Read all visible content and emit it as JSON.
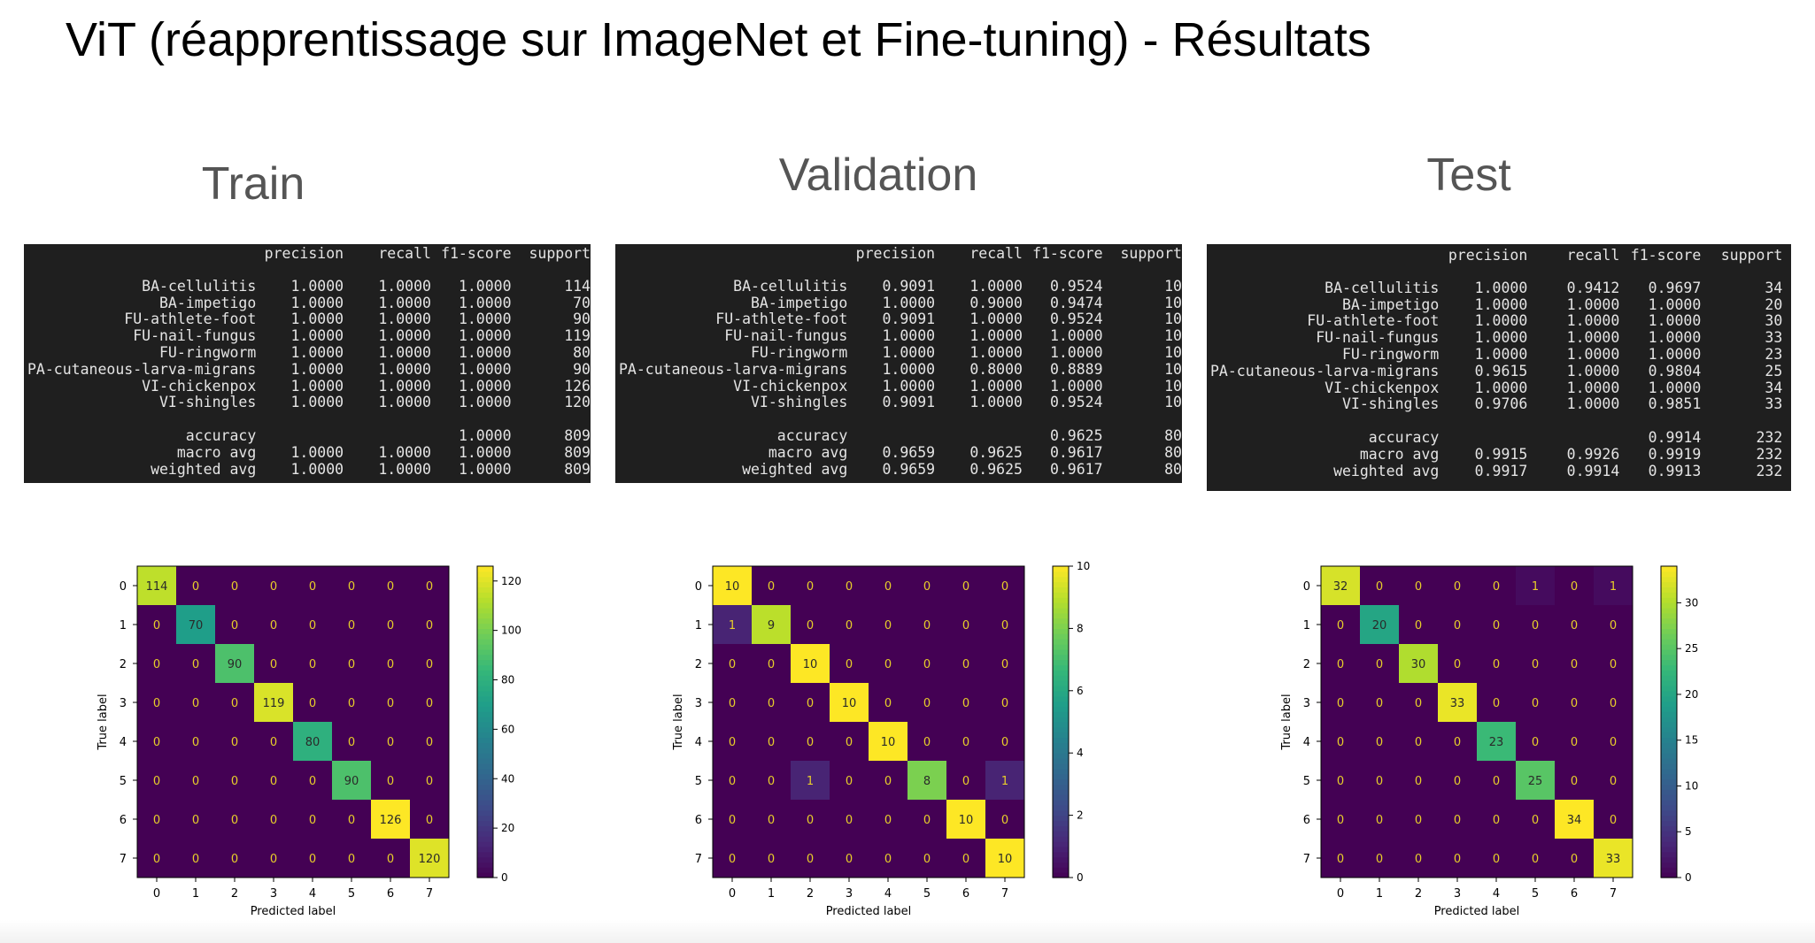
{
  "title": "ViT (réapprentissage sur ImageNet et Fine-tuning) - Résultats",
  "report_header": [
    "precision",
    "recall",
    "f1-score",
    "support"
  ],
  "colormap": "viridis",
  "panels": [
    {
      "name": "Train",
      "report": {
        "rows": [
          [
            "BA-cellulitis",
            "1.0000",
            "1.0000",
            "1.0000",
            "114"
          ],
          [
            "BA-impetigo",
            "1.0000",
            "1.0000",
            "1.0000",
            "70"
          ],
          [
            "FU-athlete-foot",
            "1.0000",
            "1.0000",
            "1.0000",
            "90"
          ],
          [
            "FU-nail-fungus",
            "1.0000",
            "1.0000",
            "1.0000",
            "119"
          ],
          [
            "FU-ringworm",
            "1.0000",
            "1.0000",
            "1.0000",
            "80"
          ],
          [
            "PA-cutaneous-larva-migrans",
            "1.0000",
            "1.0000",
            "1.0000",
            "90"
          ],
          [
            "VI-chickenpox",
            "1.0000",
            "1.0000",
            "1.0000",
            "126"
          ],
          [
            "VI-shingles",
            "1.0000",
            "1.0000",
            "1.0000",
            "120"
          ]
        ],
        "summary": [
          [
            "accuracy",
            "",
            "",
            "1.0000",
            "809"
          ],
          [
            "macro avg",
            "1.0000",
            "1.0000",
            "1.0000",
            "809"
          ],
          [
            "weighted avg",
            "1.0000",
            "1.0000",
            "1.0000",
            "809"
          ]
        ]
      }
    },
    {
      "name": "Validation",
      "report": {
        "rows": [
          [
            "BA-cellulitis",
            "0.9091",
            "1.0000",
            "0.9524",
            "10"
          ],
          [
            "BA-impetigo",
            "1.0000",
            "0.9000",
            "0.9474",
            "10"
          ],
          [
            "FU-athlete-foot",
            "0.9091",
            "1.0000",
            "0.9524",
            "10"
          ],
          [
            "FU-nail-fungus",
            "1.0000",
            "1.0000",
            "1.0000",
            "10"
          ],
          [
            "FU-ringworm",
            "1.0000",
            "1.0000",
            "1.0000",
            "10"
          ],
          [
            "PA-cutaneous-larva-migrans",
            "1.0000",
            "0.8000",
            "0.8889",
            "10"
          ],
          [
            "VI-chickenpox",
            "1.0000",
            "1.0000",
            "1.0000",
            "10"
          ],
          [
            "VI-shingles",
            "0.9091",
            "1.0000",
            "0.9524",
            "10"
          ]
        ],
        "summary": [
          [
            "accuracy",
            "",
            "",
            "0.9625",
            "80"
          ],
          [
            "macro avg",
            "0.9659",
            "0.9625",
            "0.9617",
            "80"
          ],
          [
            "weighted avg",
            "0.9659",
            "0.9625",
            "0.9617",
            "80"
          ]
        ]
      }
    },
    {
      "name": "Test",
      "report": {
        "rows": [
          [
            "BA-cellulitis",
            "1.0000",
            "0.9412",
            "0.9697",
            "34"
          ],
          [
            "BA-impetigo",
            "1.0000",
            "1.0000",
            "1.0000",
            "20"
          ],
          [
            "FU-athlete-foot",
            "1.0000",
            "1.0000",
            "1.0000",
            "30"
          ],
          [
            "FU-nail-fungus",
            "1.0000",
            "1.0000",
            "1.0000",
            "33"
          ],
          [
            "FU-ringworm",
            "1.0000",
            "1.0000",
            "1.0000",
            "23"
          ],
          [
            "PA-cutaneous-larva-migrans",
            "0.9615",
            "1.0000",
            "0.9804",
            "25"
          ],
          [
            "VI-chickenpox",
            "1.0000",
            "1.0000",
            "1.0000",
            "34"
          ],
          [
            "VI-shingles",
            "0.9706",
            "1.0000",
            "0.9851",
            "33"
          ]
        ],
        "summary": [
          [
            "accuracy",
            "",
            "",
            "0.9914",
            "232"
          ],
          [
            "macro avg",
            "0.9915",
            "0.9926",
            "0.9919",
            "232"
          ],
          [
            "weighted avg",
            "0.9917",
            "0.9914",
            "0.9913",
            "232"
          ]
        ]
      }
    }
  ],
  "chart_data": [
    {
      "type": "heatmap",
      "title": "",
      "xlabel": "Predicted label",
      "ylabel": "True label",
      "x": [
        "0",
        "1",
        "2",
        "3",
        "4",
        "5",
        "6",
        "7"
      ],
      "y": [
        "0",
        "1",
        "2",
        "3",
        "4",
        "5",
        "6",
        "7"
      ],
      "values": [
        [
          114,
          0,
          0,
          0,
          0,
          0,
          0,
          0
        ],
        [
          0,
          70,
          0,
          0,
          0,
          0,
          0,
          0
        ],
        [
          0,
          0,
          90,
          0,
          0,
          0,
          0,
          0
        ],
        [
          0,
          0,
          0,
          119,
          0,
          0,
          0,
          0
        ],
        [
          0,
          0,
          0,
          0,
          80,
          0,
          0,
          0
        ],
        [
          0,
          0,
          0,
          0,
          0,
          90,
          0,
          0
        ],
        [
          0,
          0,
          0,
          0,
          0,
          0,
          126,
          0
        ],
        [
          0,
          0,
          0,
          0,
          0,
          0,
          0,
          120
        ]
      ],
      "colorbar": {
        "range": [
          0,
          126
        ],
        "ticks": [
          0,
          20,
          40,
          60,
          80,
          100,
          120
        ]
      }
    },
    {
      "type": "heatmap",
      "title": "",
      "xlabel": "Predicted label",
      "ylabel": "True label",
      "x": [
        "0",
        "1",
        "2",
        "3",
        "4",
        "5",
        "6",
        "7"
      ],
      "y": [
        "0",
        "1",
        "2",
        "3",
        "4",
        "5",
        "6",
        "7"
      ],
      "values": [
        [
          10,
          0,
          0,
          0,
          0,
          0,
          0,
          0
        ],
        [
          1,
          9,
          0,
          0,
          0,
          0,
          0,
          0
        ],
        [
          0,
          0,
          10,
          0,
          0,
          0,
          0,
          0
        ],
        [
          0,
          0,
          0,
          10,
          0,
          0,
          0,
          0
        ],
        [
          0,
          0,
          0,
          0,
          10,
          0,
          0,
          0
        ],
        [
          0,
          0,
          1,
          0,
          0,
          8,
          0,
          1
        ],
        [
          0,
          0,
          0,
          0,
          0,
          0,
          10,
          0
        ],
        [
          0,
          0,
          0,
          0,
          0,
          0,
          0,
          10
        ]
      ],
      "colorbar": {
        "range": [
          0,
          10
        ],
        "ticks": [
          0,
          2,
          4,
          6,
          8,
          10
        ]
      }
    },
    {
      "type": "heatmap",
      "title": "",
      "xlabel": "Predicted label",
      "ylabel": "True label",
      "x": [
        "0",
        "1",
        "2",
        "3",
        "4",
        "5",
        "6",
        "7"
      ],
      "y": [
        "0",
        "1",
        "2",
        "3",
        "4",
        "5",
        "6",
        "7"
      ],
      "values": [
        [
          32,
          0,
          0,
          0,
          0,
          1,
          0,
          1
        ],
        [
          0,
          20,
          0,
          0,
          0,
          0,
          0,
          0
        ],
        [
          0,
          0,
          30,
          0,
          0,
          0,
          0,
          0
        ],
        [
          0,
          0,
          0,
          33,
          0,
          0,
          0,
          0
        ],
        [
          0,
          0,
          0,
          0,
          23,
          0,
          0,
          0
        ],
        [
          0,
          0,
          0,
          0,
          0,
          25,
          0,
          0
        ],
        [
          0,
          0,
          0,
          0,
          0,
          0,
          34,
          0
        ],
        [
          0,
          0,
          0,
          0,
          0,
          0,
          0,
          33
        ]
      ],
      "colorbar": {
        "range": [
          0,
          34
        ],
        "ticks": [
          0,
          5,
          10,
          15,
          20,
          25,
          30
        ]
      }
    }
  ]
}
